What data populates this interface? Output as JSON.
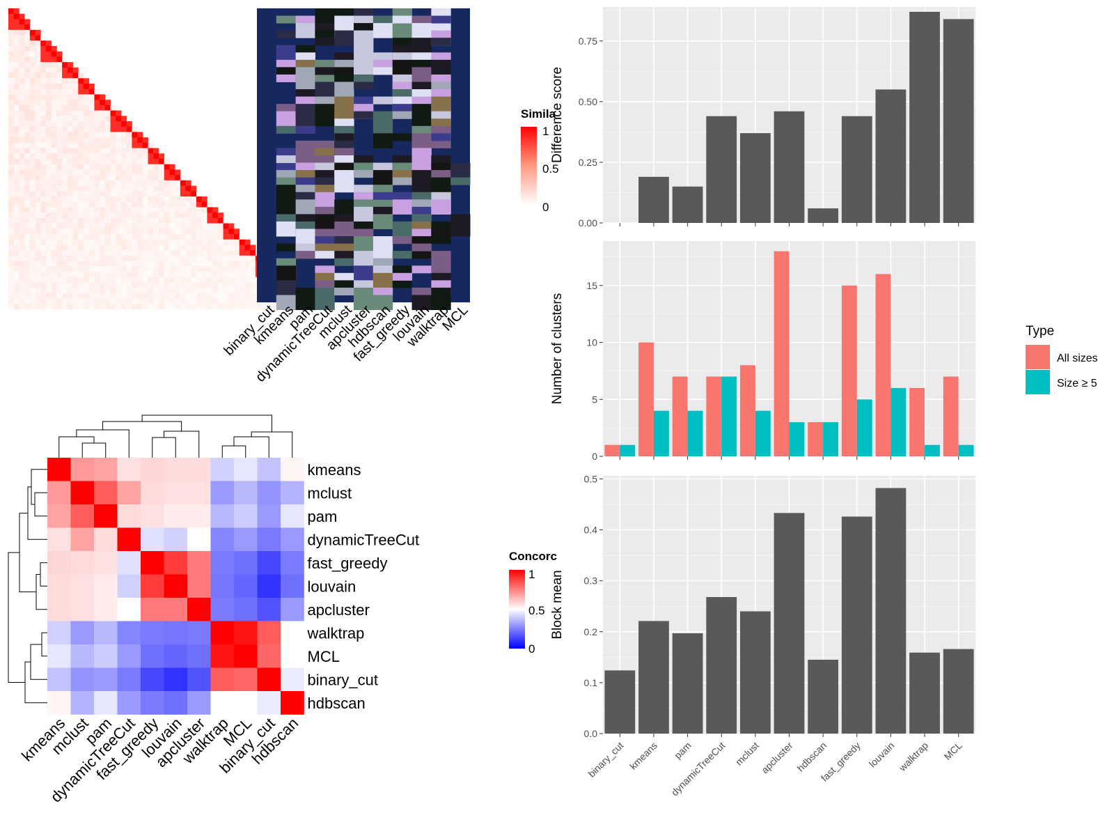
{
  "colors": {
    "panel_bg": "#ebebeb",
    "grid": "#ffffff",
    "bar_dark": "#595959",
    "all_sizes": "#f8766d",
    "size5": "#00bfc4",
    "heat_red": "#ff0000",
    "heat_white": "#ffffff",
    "heat_blue": "#0000ff",
    "navy": "#17285e"
  },
  "similarity_panel": {
    "legend_title": "Simila",
    "legend_ticks": [
      "1",
      "0.5",
      "0"
    ],
    "methods": [
      "binary_cut",
      "kmeans",
      "pam",
      "dynamicTreeCut",
      "mclust",
      "apcluster",
      "hdbscan",
      "fast_greedy",
      "louvain",
      "walktrap",
      "MCL"
    ]
  },
  "concordance_panel": {
    "legend_title": "Concorc",
    "legend_ticks": [
      "1",
      "0.5",
      "0"
    ],
    "rows": [
      "kmeans",
      "mclust",
      "pam",
      "dynamicTreeCut",
      "fast_greedy",
      "louvain",
      "apcluster",
      "walktrap",
      "MCL",
      "binary_cut",
      "hdbscan"
    ],
    "matrix": [
      [
        1.0,
        0.7,
        0.68,
        0.56,
        0.58,
        0.57,
        0.57,
        0.41,
        0.45,
        0.38,
        0.52
      ],
      [
        0.7,
        1.0,
        0.82,
        0.68,
        0.57,
        0.56,
        0.56,
        0.3,
        0.36,
        0.29,
        0.35
      ],
      [
        0.68,
        0.82,
        1.0,
        0.57,
        0.56,
        0.54,
        0.54,
        0.36,
        0.4,
        0.3,
        0.45
      ],
      [
        0.56,
        0.68,
        0.57,
        1.0,
        0.44,
        0.41,
        0.5,
        0.26,
        0.3,
        0.24,
        0.3
      ],
      [
        0.58,
        0.57,
        0.56,
        0.44,
        1.0,
        0.88,
        0.76,
        0.24,
        0.22,
        0.14,
        0.24
      ],
      [
        0.57,
        0.56,
        0.54,
        0.41,
        0.88,
        1.0,
        0.76,
        0.23,
        0.2,
        0.1,
        0.22
      ],
      [
        0.57,
        0.56,
        0.54,
        0.5,
        0.76,
        0.76,
        1.0,
        0.24,
        0.22,
        0.16,
        0.3
      ],
      [
        0.41,
        0.3,
        0.36,
        0.26,
        0.24,
        0.23,
        0.24,
        1.0,
        0.96,
        0.82,
        0.5
      ],
      [
        0.45,
        0.36,
        0.4,
        0.3,
        0.22,
        0.2,
        0.22,
        0.96,
        1.0,
        0.8,
        0.5
      ],
      [
        0.38,
        0.29,
        0.3,
        0.24,
        0.14,
        0.1,
        0.16,
        0.82,
        0.8,
        1.0,
        0.46
      ],
      [
        0.52,
        0.35,
        0.45,
        0.3,
        0.24,
        0.22,
        0.3,
        0.5,
        0.5,
        0.46,
        1.0
      ]
    ]
  },
  "chart_data": [
    {
      "type": "bar",
      "categories": [
        "binary_cut",
        "kmeans",
        "pam",
        "dynamicTreeCut",
        "mclust",
        "apcluster",
        "hdbscan",
        "fast_greedy",
        "louvain",
        "walktrap",
        "MCL"
      ],
      "values": [
        0.0,
        0.19,
        0.15,
        0.44,
        0.37,
        0.46,
        0.06,
        0.44,
        0.55,
        0.87,
        0.84
      ],
      "xlabel": "",
      "ylabel": "Difference score",
      "ylim": [
        0,
        0.89
      ],
      "yticks": [
        "0.00",
        "0.25",
        "0.50",
        "0.75"
      ],
      "show_x_tick_labels": false,
      "grid": true
    },
    {
      "type": "bar",
      "categories": [
        "binary_cut",
        "kmeans",
        "pam",
        "dynamicTreeCut",
        "mclust",
        "apcluster",
        "hdbscan",
        "fast_greedy",
        "louvain",
        "walktrap",
        "MCL"
      ],
      "series": [
        {
          "name": "All sizes",
          "values": [
            1,
            10,
            7,
            7,
            8,
            18,
            3,
            15,
            16,
            6,
            7
          ]
        },
        {
          "name": "Size ≥ 5",
          "values": [
            1,
            4,
            4,
            7,
            4,
            3,
            3,
            5,
            6,
            1,
            1
          ]
        }
      ],
      "xlabel": "",
      "ylabel": "Number of clusters",
      "ylim": [
        0,
        18.9
      ],
      "yticks": [
        "0",
        "5",
        "10",
        "15"
      ],
      "legend_title": "Type",
      "legend_position": "right",
      "show_x_tick_labels": false,
      "grid": true
    },
    {
      "type": "bar",
      "categories": [
        "binary_cut",
        "kmeans",
        "pam",
        "dynamicTreeCut",
        "mclust",
        "apcluster",
        "hdbscan",
        "fast_greedy",
        "louvain",
        "walktrap",
        "MCL"
      ],
      "values": [
        0.124,
        0.221,
        0.197,
        0.268,
        0.24,
        0.433,
        0.145,
        0.426,
        0.482,
        0.159,
        0.166
      ],
      "xlabel": "",
      "ylabel": "Block mean",
      "ylim": [
        0,
        0.506
      ],
      "yticks": [
        "0.0",
        "0.1",
        "0.2",
        "0.3",
        "0.4",
        "0.5"
      ],
      "show_x_tick_labels": true,
      "grid": true
    }
  ]
}
